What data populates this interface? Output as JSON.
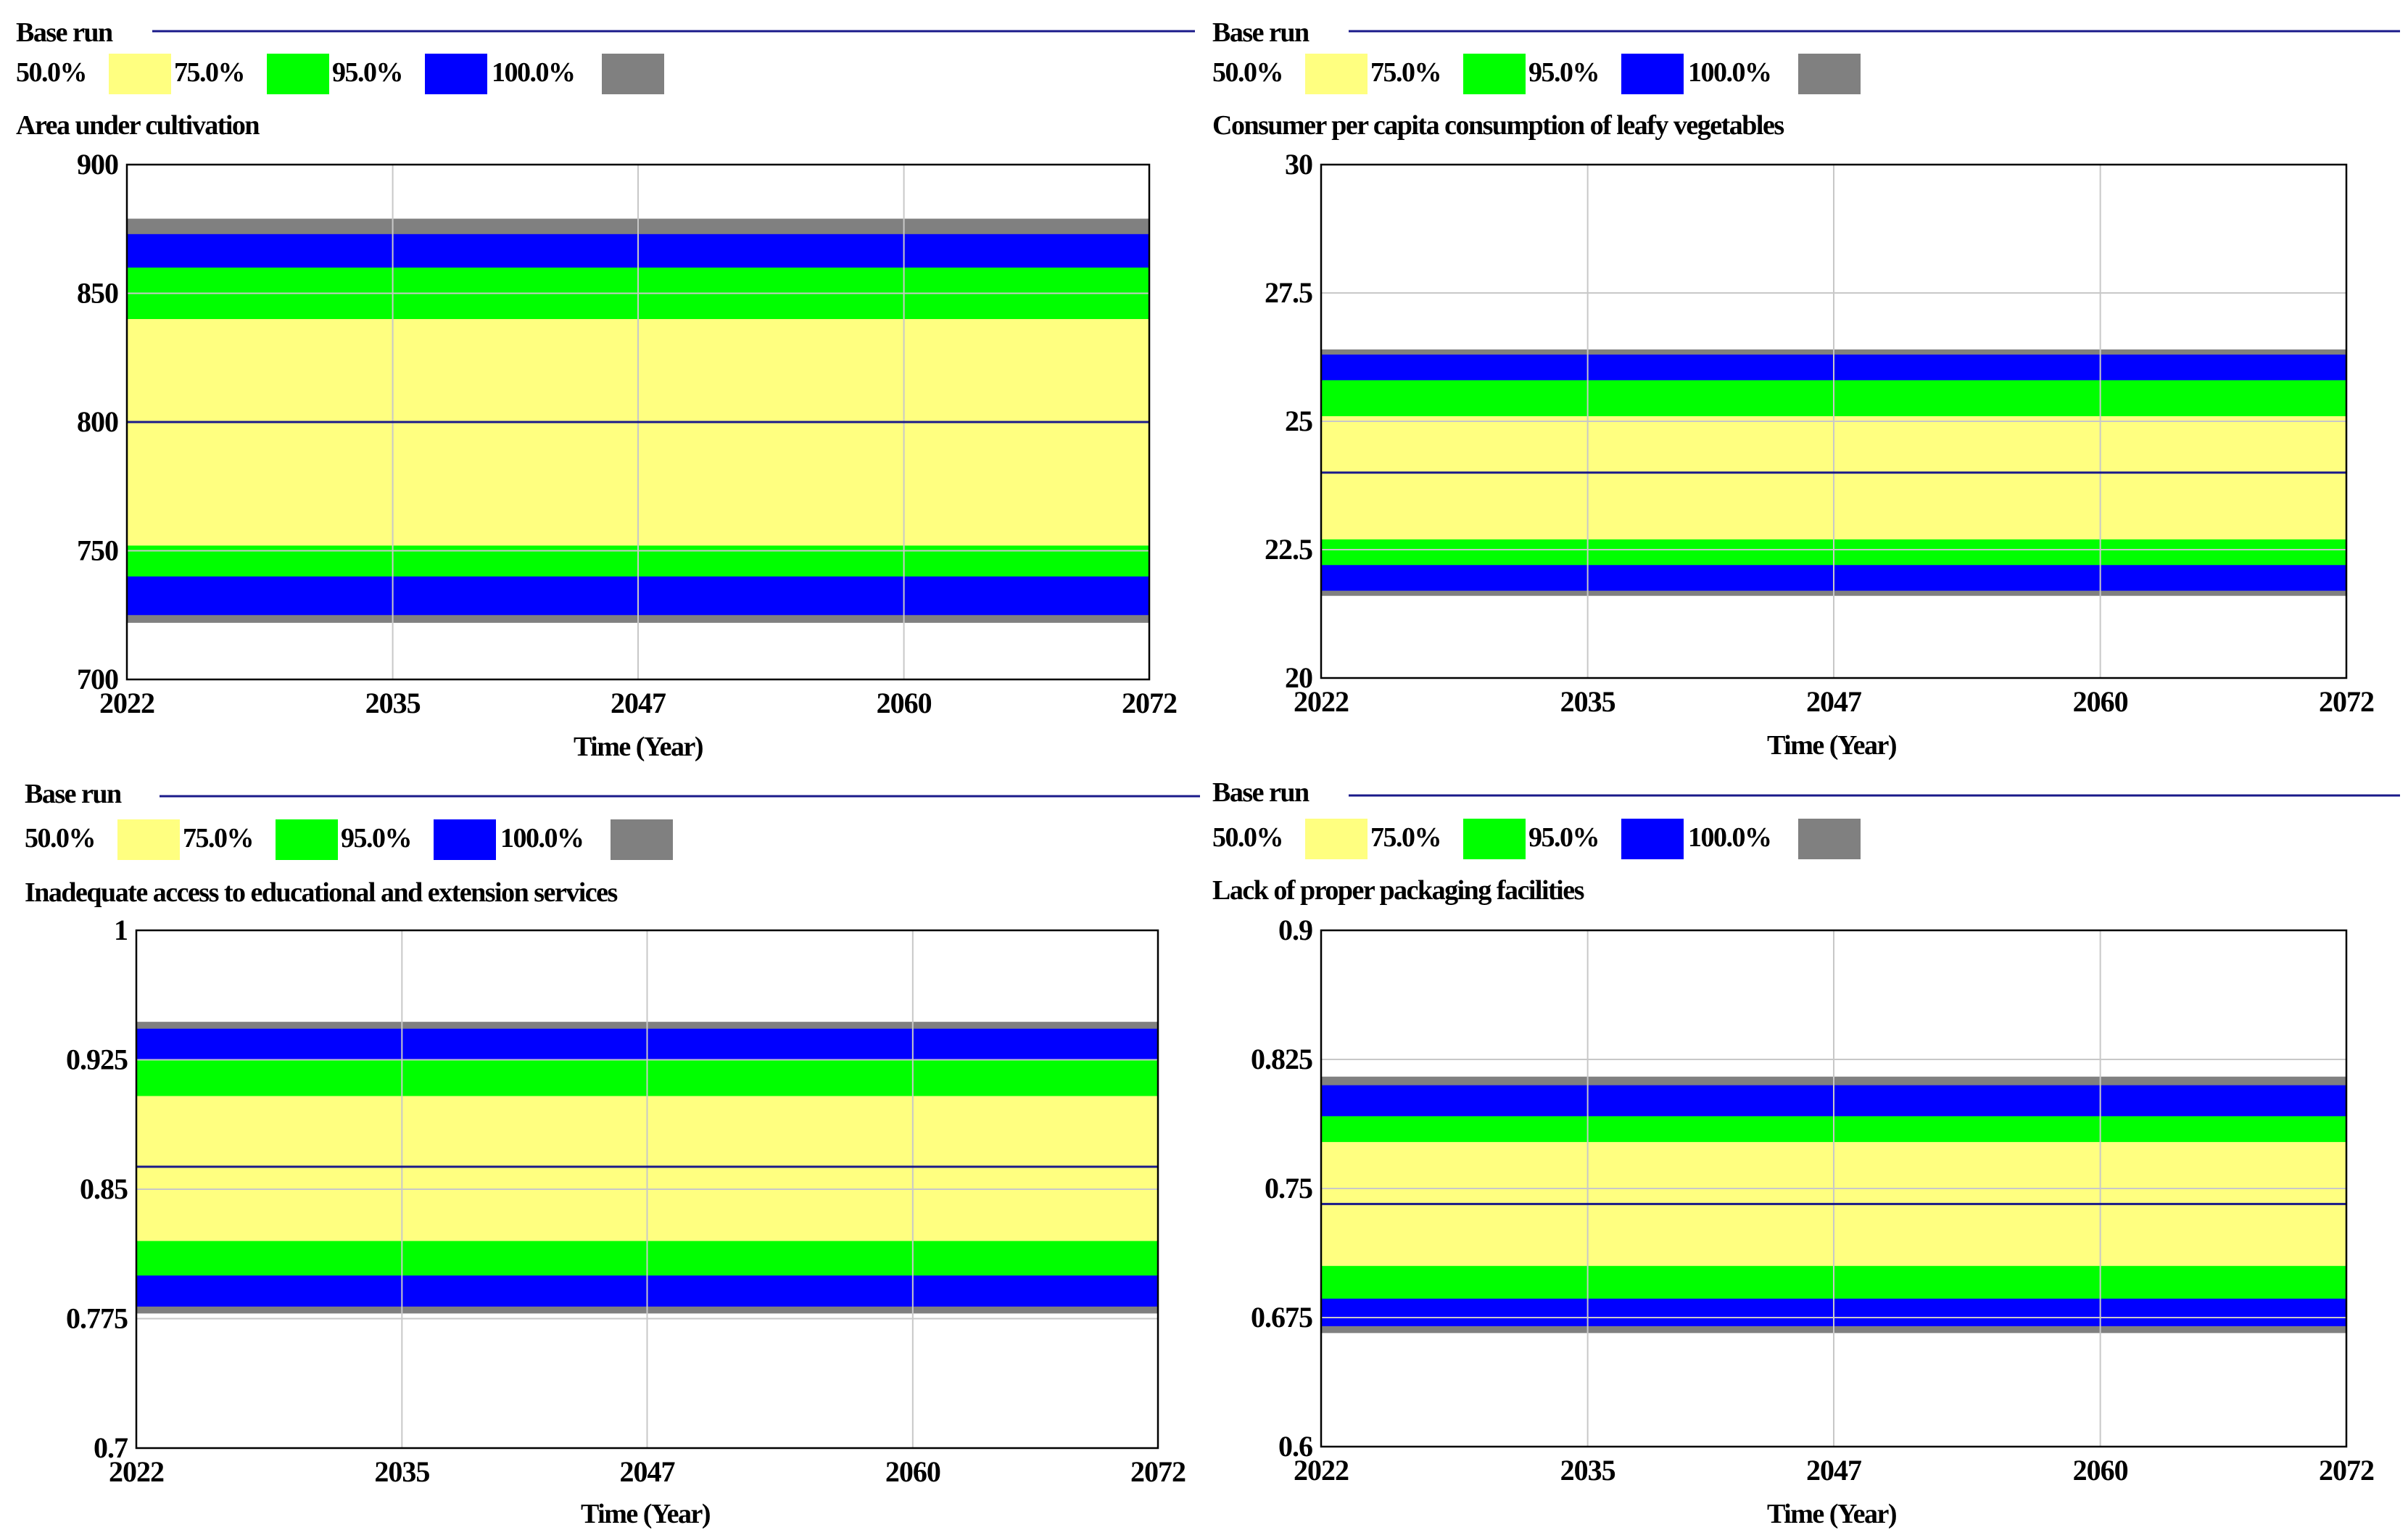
{
  "figure": {
    "xlabel": "Time (Year)",
    "x_ticks": [
      "2022",
      "2035",
      "2047",
      "2060",
      "2072"
    ],
    "x_values": [
      2022,
      2035,
      2047,
      2060,
      2072
    ],
    "xlim": [
      2022,
      2072
    ]
  },
  "colors": {
    "band_50": "#ffff80",
    "band_75": "#00ff00",
    "band_95": "#0000ff",
    "band_100": "#808080",
    "base_run": "#1a1a8a",
    "grid": "#c8c8c8",
    "frame": "#000000"
  },
  "chart_data": [
    {
      "type": "area",
      "title": "Area under cultivation",
      "legend": {
        "base_label": "Base run",
        "levels": [
          "50.0%",
          "75.0%",
          "95.0%",
          "100.0%"
        ]
      },
      "xlabel": "Time (Year)",
      "ylim": [
        700,
        900
      ],
      "y_ticks": [
        "700",
        "750",
        "800",
        "850",
        "900"
      ],
      "y_values": [
        700,
        750,
        800,
        850,
        900
      ],
      "base_run": 800,
      "bands": [
        {
          "level": "100.0%",
          "lower": 722,
          "upper": 879
        },
        {
          "level": "95.0%",
          "lower": 725,
          "upper": 873
        },
        {
          "level": "75.0%",
          "lower": 740,
          "upper": 860
        },
        {
          "level": "50.0%",
          "lower": 752,
          "upper": 840
        }
      ]
    },
    {
      "type": "area",
      "title": "Consumer per capita consumption of leafy vegetables",
      "legend": {
        "base_label": "Base run",
        "levels": [
          "50.0%",
          "75.0%",
          "95.0%",
          "100.0%"
        ]
      },
      "xlabel": "Time (Year)",
      "ylim": [
        20,
        30
      ],
      "y_ticks": [
        "20",
        "22.5",
        "25",
        "27.5",
        "30"
      ],
      "y_values": [
        20,
        22.5,
        25,
        27.5,
        30
      ],
      "base_run": 24,
      "bands": [
        {
          "level": "100.0%",
          "lower": 21.6,
          "upper": 26.4
        },
        {
          "level": "95.0%",
          "lower": 21.7,
          "upper": 26.3
        },
        {
          "level": "75.0%",
          "lower": 22.2,
          "upper": 25.8
        },
        {
          "level": "50.0%",
          "lower": 22.7,
          "upper": 25.1
        }
      ]
    },
    {
      "type": "area",
      "title": "Inadequate access to educational and extension services",
      "legend": {
        "base_label": "Base run",
        "levels": [
          "50.0%",
          "75.0%",
          "95.0%",
          "100.0%"
        ]
      },
      "xlabel": "Time (Year)",
      "ylim": [
        0.7,
        1
      ],
      "y_ticks": [
        "0.7",
        "0.775",
        "0.85",
        "0.925",
        "1"
      ],
      "y_values": [
        0.7,
        0.775,
        0.85,
        0.925,
        1
      ],
      "base_run": 0.863,
      "bands": [
        {
          "level": "100.0%",
          "lower": 0.778,
          "upper": 0.947
        },
        {
          "level": "95.0%",
          "lower": 0.782,
          "upper": 0.943
        },
        {
          "level": "75.0%",
          "lower": 0.8,
          "upper": 0.925
        },
        {
          "level": "50.0%",
          "lower": 0.82,
          "upper": 0.904
        }
      ]
    },
    {
      "type": "area",
      "title": "Lack of proper packaging facilities",
      "legend": {
        "base_label": "Base run",
        "levels": [
          "50.0%",
          "75.0%",
          "95.0%",
          "100.0%"
        ]
      },
      "xlabel": "Time (Year)",
      "ylim": [
        0.6,
        0.9
      ],
      "y_ticks": [
        "0.6",
        "0.675",
        "0.75",
        "0.825",
        "0.9"
      ],
      "y_values": [
        0.6,
        0.675,
        0.75,
        0.825,
        0.9
      ],
      "base_run": 0.741,
      "bands": [
        {
          "level": "100.0%",
          "lower": 0.666,
          "upper": 0.815
        },
        {
          "level": "95.0%",
          "lower": 0.67,
          "upper": 0.81
        },
        {
          "level": "75.0%",
          "lower": 0.686,
          "upper": 0.792
        },
        {
          "level": "50.0%",
          "lower": 0.705,
          "upper": 0.777
        }
      ]
    }
  ]
}
